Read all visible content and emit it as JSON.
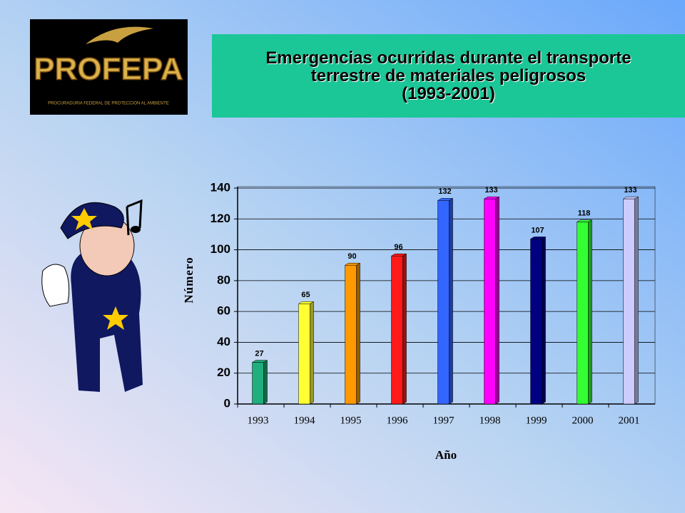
{
  "logo": {
    "name": "PROFEPA",
    "subtitle": "PROCURADURIA FEDERAL DE PROTECCION AL AMBIENTE"
  },
  "chart_data": {
    "type": "bar",
    "title": [
      "Emergencias ocurridas durante el transporte",
      "terrestre de materiales peligrosos",
      "(1993-2001)"
    ],
    "x_label": "Año",
    "y_label": "Número",
    "categories": [
      "1993",
      "1994",
      "1995",
      "1996",
      "1997",
      "1998",
      "1999",
      "2000",
      "2001"
    ],
    "values": [
      27,
      65,
      90,
      96,
      132,
      133,
      107,
      118,
      133
    ],
    "colors": [
      "#1fae7c",
      "#ffff33",
      "#ff9900",
      "#ff1a1a",
      "#3366ff",
      "#ff00ff",
      "#000080",
      "#33ff33",
      "#ccccff"
    ],
    "ylim": [
      0,
      140
    ],
    "yticks": [
      0,
      20,
      40,
      60,
      80,
      100,
      120,
      140
    ],
    "grid": true
  }
}
